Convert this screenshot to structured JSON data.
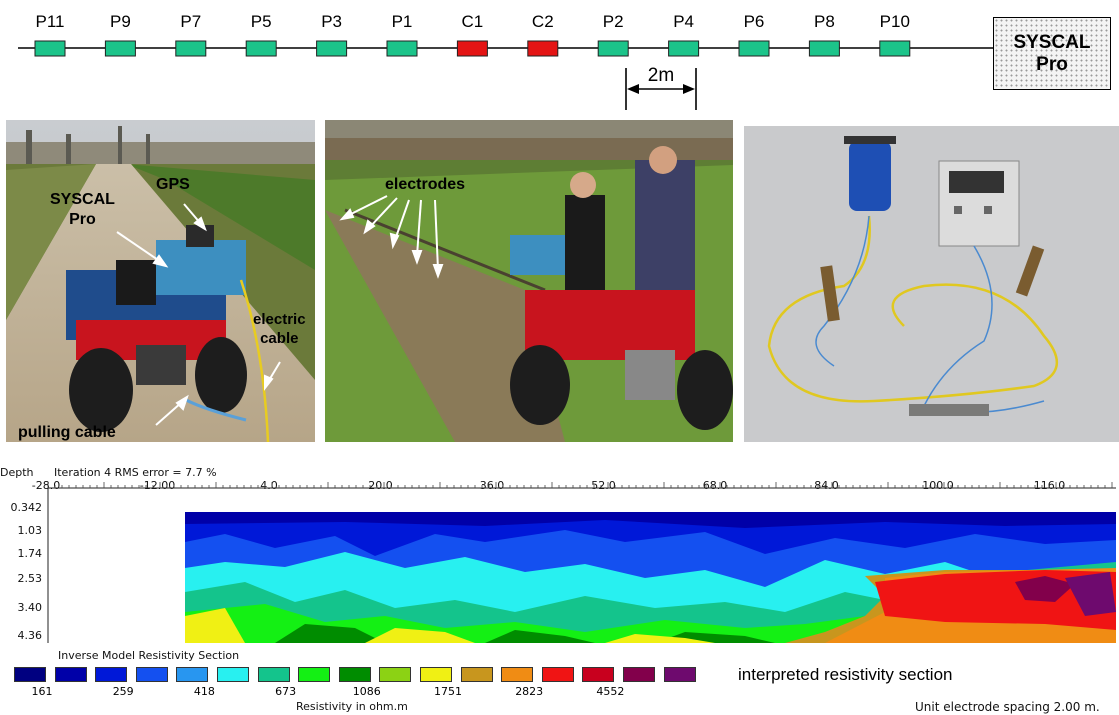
{
  "array": {
    "electrodes": [
      {
        "label": "P11",
        "color": "#1cc48a"
      },
      {
        "label": "P9",
        "color": "#1cc48a"
      },
      {
        "label": "P7",
        "color": "#1cc48a"
      },
      {
        "label": "P5",
        "color": "#1cc48a"
      },
      {
        "label": "P3",
        "color": "#1cc48a"
      },
      {
        "label": "P1",
        "color": "#1cc48a"
      },
      {
        "label": "C1",
        "color": "#e41414"
      },
      {
        "label": "C2",
        "color": "#e41414"
      },
      {
        "label": "P2",
        "color": "#1cc48a"
      },
      {
        "label": "P4",
        "color": "#1cc48a"
      },
      {
        "label": "P6",
        "color": "#1cc48a"
      },
      {
        "label": "P8",
        "color": "#1cc48a"
      },
      {
        "label": "P10",
        "color": "#1cc48a"
      }
    ],
    "spacing_label": "2m",
    "device_line1": "SYSCAL",
    "device_line2": "Pro"
  },
  "photos": {
    "left": {
      "syscal_line1": "SYSCAL",
      "syscal_line2": "Pro",
      "gps": "GPS",
      "electric_line1": "electric",
      "electric_line2": "cable",
      "pulling": "pulling cable"
    },
    "middle": {
      "electrodes": "electrodes"
    }
  },
  "section": {
    "depth_title": "Depth",
    "iteration": "Iteration 4 RMS error = 7.7 %",
    "x_ticks": [
      "-28.0",
      "-12.00",
      "4.0",
      "20.0",
      "36.0",
      "52.0",
      "68.0",
      "84.0",
      "100.0",
      "116.0"
    ],
    "depths": [
      "0.342",
      "1.03",
      "1.74",
      "2.53",
      "3.40",
      "4.36"
    ],
    "legend_title": "Inverse Model Resistivity Section",
    "legend_colors": [
      "#000080",
      "#0000a8",
      "#0018d8",
      "#1450f0",
      "#2896f0",
      "#28f0f0",
      "#14c48c",
      "#14f014",
      "#008c00",
      "#8cd214",
      "#f0f014",
      "#c8961e",
      "#f08c14",
      "#f01414",
      "#c8001e",
      "#82004b",
      "#6e0a6e"
    ],
    "legend_values": [
      "161",
      "259",
      "418",
      "673",
      "1086",
      "1751",
      "2823",
      "4552"
    ],
    "units": "Resistivity in ohm.m",
    "interpreted": "interpreted resistivity section",
    "spacing_note": "Unit electrode spacing 2.00 m."
  }
}
